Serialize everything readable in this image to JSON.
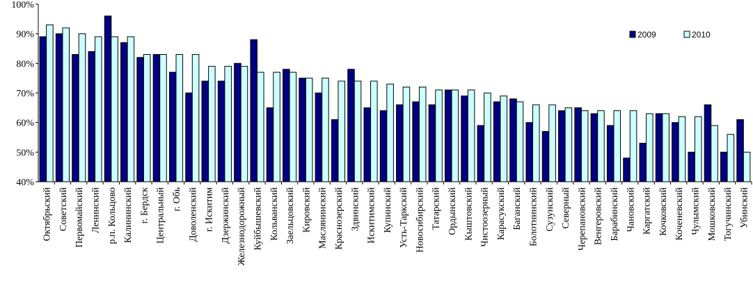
{
  "chart_data": {
    "type": "bar",
    "title": "",
    "xlabel": "",
    "ylabel": "",
    "ylim": [
      40,
      100
    ],
    "yticks": [
      "40%",
      "50%",
      "60%",
      "70%",
      "80%",
      "90%",
      "100%"
    ],
    "grid": false,
    "legend_position": "top-right",
    "categories": [
      "Октябрьский",
      "Советский",
      "Первомайский",
      "Ленинский",
      "р.п. Кольцово",
      "Калининский",
      "г. Бердск",
      "Центральный",
      "г. Обь",
      "Доволенский",
      "г. Искитим",
      "Дзержинский",
      "Железнодорожный",
      "Куйбышевский",
      "Кольванский",
      "Заельцовский",
      "Кировский",
      "Маслянинский",
      "Краснозерский",
      "Здвинский",
      "Искитимский",
      "Купинский",
      "Усть-Таркский",
      "Новосибирский",
      "Татарский",
      "Ордынский",
      "Кыштовский",
      "Чистоозерный",
      "Карасукский",
      "Баганский",
      "Болотнинский",
      "Сузунский",
      "Северный",
      "Черепановский",
      "Венгеровский",
      "Барабинский",
      "Чановский",
      "Каргатский",
      "Кочковский",
      "Коченевский",
      "Чулымский",
      "Мошковский",
      "Тогучинский",
      "Убинский"
    ],
    "series": [
      {
        "name": "2009",
        "color": "#000080",
        "values": [
          89,
          90,
          83,
          84,
          96,
          87,
          82,
          83,
          77,
          70,
          74,
          74,
          80,
          88,
          65,
          78,
          75,
          70,
          61,
          78,
          65,
          64,
          66,
          67,
          66,
          71,
          69,
          59,
          67,
          68,
          60,
          57,
          64,
          65,
          63,
          59,
          48,
          53,
          63,
          60,
          50,
          66,
          50,
          61
        ]
      },
      {
        "name": "2010",
        "color": "#ccffff",
        "values": [
          93,
          92,
          90,
          89,
          89,
          89,
          83,
          83,
          83,
          83,
          79,
          79,
          79,
          77,
          77,
          77,
          75,
          75,
          74,
          74,
          74,
          73,
          72,
          72,
          71,
          71,
          71,
          70,
          69,
          67,
          66,
          66,
          65,
          64,
          64,
          64,
          64,
          63,
          63,
          62,
          62,
          59,
          56,
          50
        ]
      }
    ]
  }
}
